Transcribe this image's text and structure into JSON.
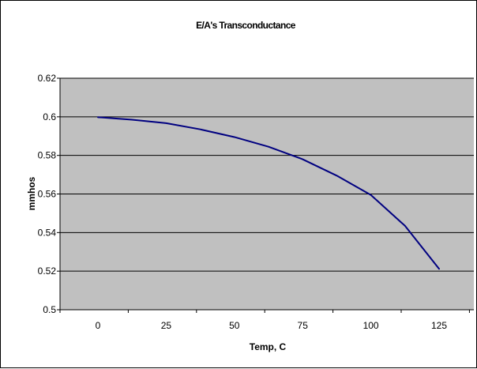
{
  "chart_data": {
    "type": "line",
    "title": "E/A's Transconductance",
    "xlabel": "Temp, C",
    "ylabel": "mmhos",
    "categories": [
      "0",
      "25",
      "50",
      "75",
      "100",
      "125"
    ],
    "x": [
      0,
      12.5,
      25,
      37.5,
      50,
      62.5,
      75,
      87.5,
      100,
      112.5,
      125
    ],
    "series": [
      {
        "values": [
          0.5998,
          0.5985,
          0.5967,
          0.5935,
          0.5895,
          0.5845,
          0.578,
          0.5695,
          0.5595,
          0.5435,
          0.5212
        ]
      }
    ],
    "ylim": [
      0.5,
      0.62
    ],
    "yticks": [
      "0.5",
      "0.52",
      "0.54",
      "0.56",
      "0.58",
      "0.6",
      "0.62"
    ],
    "grid": true,
    "legend": "none",
    "colors": {
      "plot_background": "#c0c0c0",
      "line": "#000080",
      "gridline": "#000000",
      "frame": "#000000"
    }
  }
}
